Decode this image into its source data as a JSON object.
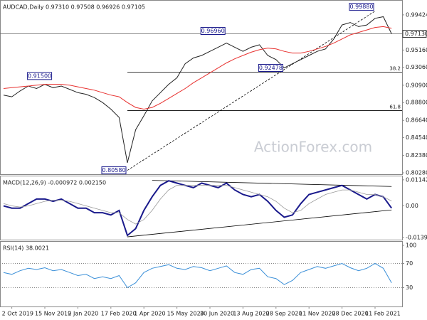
{
  "chart_data": [
    {
      "type": "line",
      "title": "AUDCAD,Daily 0.97310 0.97508 0.96926 0.97105",
      "watermark": "ActionForex.com",
      "ylim": [
        0.8011,
        1.0114
      ],
      "yticks": [
        {
          "value": 0.99424,
          "label": "0.99424"
        },
        {
          "value": 0.9516,
          "label": "0.95160"
        },
        {
          "value": 0.9306,
          "label": "0.93060"
        },
        {
          "value": 0.909,
          "label": "0.90900"
        },
        {
          "value": 0.888,
          "label": "0.88800"
        },
        {
          "value": 0.8664,
          "label": "0.86640"
        },
        {
          "value": 0.8454,
          "label": "0.84540"
        },
        {
          "value": 0.8238,
          "label": "0.82380"
        },
        {
          "value": 0.8028,
          "label": "0.80280"
        }
      ],
      "series": [
        {
          "name": "AUDCAD",
          "color": "#222222",
          "values": [
            0.897,
            0.895,
            0.902,
            0.908,
            0.905,
            0.91,
            0.906,
            0.908,
            0.904,
            0.9,
            0.898,
            0.894,
            0.888,
            0.88,
            0.87,
            0.815,
            0.855,
            0.872,
            0.89,
            0.9,
            0.91,
            0.918,
            0.935,
            0.942,
            0.945,
            0.95,
            0.955,
            0.96,
            0.955,
            0.95,
            0.955,
            0.958,
            0.945,
            0.94,
            0.93,
            0.935,
            0.94,
            0.945,
            0.95,
            0.953,
            0.965,
            0.982,
            0.985,
            0.98,
            0.982,
            0.99,
            0.992,
            0.9713
          ]
        },
        {
          "name": "MA",
          "color": "#e8312f",
          "values": [
            0.905,
            0.906,
            0.907,
            0.908,
            0.909,
            0.91,
            0.91,
            0.91,
            0.909,
            0.907,
            0.905,
            0.903,
            0.9,
            0.897,
            0.895,
            0.888,
            0.882,
            0.88,
            0.882,
            0.887,
            0.893,
            0.899,
            0.905,
            0.912,
            0.918,
            0.924,
            0.93,
            0.936,
            0.941,
            0.945,
            0.949,
            0.952,
            0.954,
            0.953,
            0.95,
            0.948,
            0.948,
            0.95,
            0.953,
            0.956,
            0.96,
            0.965,
            0.97,
            0.973,
            0.976,
            0.979,
            0.98,
            0.978
          ]
        }
      ],
      "annotations": [
        {
          "label": "0.91500",
          "value": 0.915,
          "index": 6
        },
        {
          "label": "0.80580",
          "value": 0.8058,
          "index": 15
        },
        {
          "label": "0.96960",
          "value": 0.9696,
          "index": 27
        },
        {
          "label": "0.92478",
          "value": 0.92478,
          "index": 34
        },
        {
          "label": "0.99880",
          "value": 0.9988,
          "index": 45
        }
      ],
      "levels": [
        {
          "label": "38.2",
          "value": 0.9247,
          "from": 15
        },
        {
          "label": "61.8",
          "value": 0.8782,
          "from": 15
        }
      ],
      "trendline": {
        "from": [
          15,
          0.8058
        ],
        "to": [
          45,
          0.9988
        ]
      },
      "current": {
        "label": "0.97130",
        "value": 0.9713
      }
    },
    {
      "type": "line",
      "title": "MACD(12,26,9) -0.000972 0.002150",
      "ylim": [
        -0.01483,
        0.01295
      ],
      "yticks": [
        {
          "value": 0.011427,
          "label": "0.011427"
        },
        {
          "value": 0,
          "label": "0.00"
        },
        {
          "value": -0.01391,
          "label": "-0.01391"
        }
      ],
      "series": [
        {
          "name": "MACD",
          "color": "#1a1a8c",
          "values": [
            0,
            -0.001,
            -0.001,
            0.001,
            0.003,
            0.003,
            0.002,
            0.003,
            0.001,
            -0.001,
            -0.001,
            -0.003,
            -0.003,
            -0.004,
            -0.002,
            -0.013,
            -0.01,
            -0.002,
            0.004,
            0.009,
            0.011,
            0.01,
            0.009,
            0.008,
            0.01,
            0.009,
            0.008,
            0.01,
            0.007,
            0.005,
            0.004,
            0.005,
            0.002,
            -0.002,
            -0.005,
            -0.004,
            0.001,
            0.005,
            0.006,
            0.007,
            0.008,
            0.009,
            0.007,
            0.005,
            0.003,
            0.005,
            0.004,
            -0.000972
          ]
        },
        {
          "name": "Signal",
          "color": "#9a9a9a",
          "values": [
            0.001,
            0,
            -0.0005,
            0,
            0.001,
            0.002,
            0.0025,
            0.0025,
            0.002,
            0.001,
            0,
            -0.001,
            -0.002,
            -0.003,
            -0.003,
            -0.006,
            -0.008,
            -0.006,
            -0.002,
            0.003,
            0.007,
            0.009,
            0.009,
            0.009,
            0.009,
            0.009,
            0.009,
            0.009,
            0.008,
            0.007,
            0.006,
            0.005,
            0.004,
            0.002,
            -0.001,
            -0.003,
            -0.002,
            0.001,
            0.003,
            0.005,
            0.006,
            0.007,
            0.007,
            0.006,
            0.005,
            0.005,
            0.004,
            0.00215
          ]
        }
      ],
      "trendlines": [
        {
          "from": [
            18,
            0.0112
          ],
          "to": [
            47,
            0.0085
          ]
        },
        {
          "from": [
            15,
            -0.0136
          ],
          "to": [
            47,
            -0.0018
          ]
        }
      ]
    },
    {
      "type": "line",
      "title": "RSI(14) 38.0021",
      "ylim": [
        -1.2,
        105.9
      ],
      "yticks": [
        100,
        70,
        30
      ],
      "levels": [
        70,
        30
      ],
      "categories": [
        null,
        "2 Oct 2019",
        null,
        null,
        null,
        "15 Nov 2019",
        null,
        null,
        null,
        "2 Jan 2020",
        null,
        null,
        null,
        "17 Feb 2020",
        null,
        null,
        null,
        "1 Apr 2020",
        null,
        null,
        null,
        "15 May 2020",
        null,
        null,
        null,
        "30 Jun 2020",
        null,
        null,
        null,
        "13 Aug 2020",
        null,
        null,
        null,
        "28 Sep 2020",
        null,
        null,
        null,
        "11 Nov 2020",
        null,
        null,
        null,
        "28 Dec 2020",
        null,
        null,
        null,
        "11 Feb 2021",
        null,
        null
      ],
      "series": [
        {
          "name": "RSI",
          "color": "#3a8fd8",
          "values": [
            55,
            52,
            58,
            62,
            60,
            63,
            58,
            60,
            55,
            50,
            52,
            45,
            48,
            45,
            50,
            30,
            38,
            55,
            62,
            65,
            68,
            62,
            60,
            65,
            63,
            58,
            62,
            66,
            55,
            52,
            60,
            62,
            48,
            45,
            35,
            42,
            55,
            60,
            65,
            62,
            66,
            70,
            63,
            58,
            62,
            70,
            62,
            38
          ]
        }
      ]
    }
  ]
}
